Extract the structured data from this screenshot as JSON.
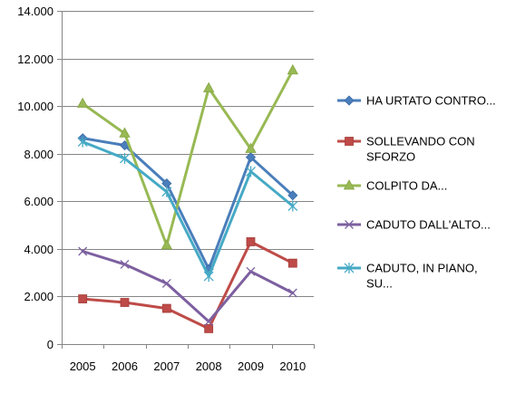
{
  "chart_data": {
    "type": "line",
    "title": "",
    "xlabel": "",
    "ylabel": "",
    "categories": [
      "2005",
      "2006",
      "2007",
      "2008",
      "2009",
      "2010"
    ],
    "ylim": [
      0,
      14000
    ],
    "y_ticks": [
      0,
      2000,
      4000,
      6000,
      8000,
      10000,
      12000,
      14000
    ],
    "y_tick_labels": [
      "0",
      "2.000",
      "4.000",
      "6.000",
      "8.000",
      "10.000",
      "12.000",
      "14.000"
    ],
    "grid": "horizontal",
    "legend_position": "right",
    "series": [
      {
        "name": "HA URTATO CONTRO...",
        "legend_lines": [
          "HA URTATO CONTRO..."
        ],
        "color": "#4a7ebb",
        "marker": "diamond",
        "values": [
          8650,
          8350,
          6750,
          3150,
          7850,
          6250
        ]
      },
      {
        "name": "SOLLEVANDO CON SFORZO",
        "legend_lines": [
          "SOLLEVANDO CON",
          "SFORZO"
        ],
        "color": "#be4b48",
        "marker": "square",
        "values": [
          1900,
          1750,
          1500,
          650,
          4300,
          3400
        ]
      },
      {
        "name": "COLPITO DA...",
        "legend_lines": [
          "COLPITO DA..."
        ],
        "color": "#98b954",
        "marker": "triangle",
        "values": [
          10100,
          8850,
          4150,
          10750,
          8200,
          11500
        ]
      },
      {
        "name": "CADUTO DALL'ALTO...",
        "legend_lines": [
          "CADUTO DALL'ALTO..."
        ],
        "color": "#7d60a0",
        "marker": "x",
        "values": [
          3900,
          3350,
          2550,
          950,
          3050,
          2150
        ]
      },
      {
        "name": "CADUTO, IN PIANO, SU...",
        "legend_lines": [
          "CADUTO, IN PIANO,",
          "SU..."
        ],
        "color": "#46aac5",
        "marker": "star",
        "values": [
          8500,
          7800,
          6400,
          2850,
          7250,
          5800
        ]
      }
    ]
  }
}
